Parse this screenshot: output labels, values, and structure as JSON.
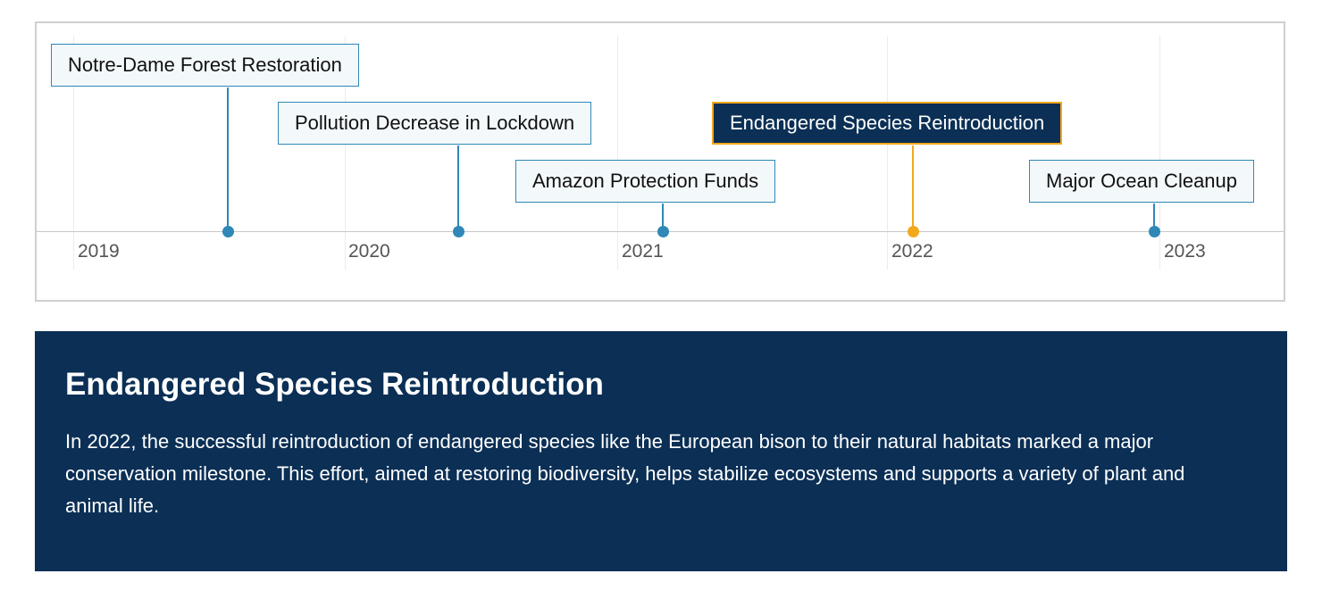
{
  "timeline": {
    "years": [
      "2019",
      "2020",
      "2021",
      "2022",
      "2023"
    ],
    "events": [
      {
        "title": "Notre-Dame Forest Restoration",
        "active": false
      },
      {
        "title": "Pollution Decrease in Lockdown",
        "active": false
      },
      {
        "title": "Amazon Protection Funds",
        "active": false
      },
      {
        "title": "Endangered Species Reintroduction",
        "active": true
      },
      {
        "title": "Major Ocean Cleanup",
        "active": false
      }
    ]
  },
  "detail": {
    "title": "Endangered Species Reintroduction",
    "text": "In 2022, the successful reintroduction of endangered species like the European bison to their natural habitats marked a major conservation milestone. This effort, aimed at restoring biodiversity, helps stabilize ecosystems and supports a variety of plant and animal life."
  },
  "colors": {
    "accent": "#2f88b6",
    "active": "#f2a81d",
    "panel": "#0b2f55"
  }
}
